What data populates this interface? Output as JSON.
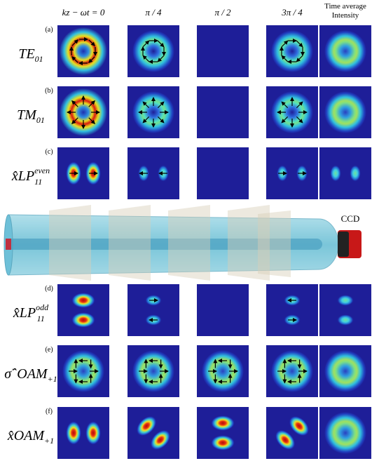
{
  "columns": [
    {
      "label": "kz − ωt = 0"
    },
    {
      "label": "π / 4"
    },
    {
      "label": "π / 2"
    },
    {
      "label": "3π / 4"
    },
    {
      "label_lines": [
        "Time average",
        "Intensity"
      ]
    }
  ],
  "rows": [
    {
      "tag": "(a)",
      "name": "TE",
      "sub": "01"
    },
    {
      "tag": "(b)",
      "name": "TM",
      "sub": "01"
    },
    {
      "tag": "(c)",
      "prefix": "x̂",
      "name": "LP",
      "sub": "11",
      "sup": "even"
    },
    {
      "tag": "(d)",
      "prefix": "x̂",
      "name": "LP",
      "sub": "11",
      "sup": "odd"
    },
    {
      "tag": "(e)",
      "prefix": "σ̂",
      "prefix_sup": "−",
      "name": "OAM",
      "sub": "+1"
    },
    {
      "tag": "(f)",
      "prefix": "x̂",
      "name": "OAM",
      "sub": "+1"
    }
  ],
  "ccd": "CCD"
}
